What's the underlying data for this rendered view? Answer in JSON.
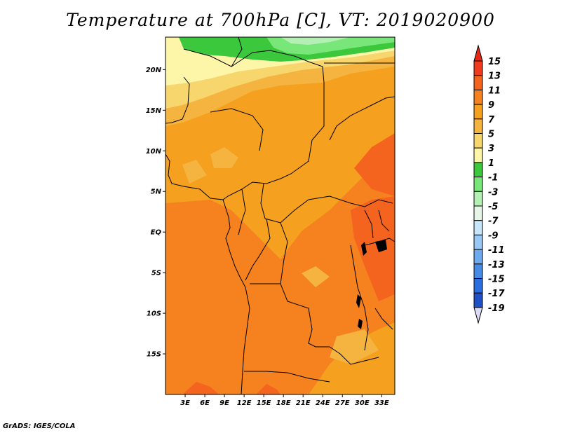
{
  "title": "Temperature at 700hPa [C], VT: 2019020900",
  "credit": "GrADS: IGES/COLA",
  "map": {
    "lon_range": [
      0,
      35
    ],
    "lat_range": [
      -20,
      24
    ],
    "lat_ticks": [
      {
        "value": 20,
        "label": "20N"
      },
      {
        "value": 15,
        "label": "15N"
      },
      {
        "value": 10,
        "label": "10N"
      },
      {
        "value": 5,
        "label": "5N"
      },
      {
        "value": 0,
        "label": "EQ"
      },
      {
        "value": -5,
        "label": "5S"
      },
      {
        "value": -10,
        "label": "10S"
      },
      {
        "value": -15,
        "label": "15S"
      }
    ],
    "lon_ticks": [
      {
        "value": 3,
        "label": "3E"
      },
      {
        "value": 6,
        "label": "6E"
      },
      {
        "value": 9,
        "label": "9E"
      },
      {
        "value": 12,
        "label": "12E"
      },
      {
        "value": 15,
        "label": "15E"
      },
      {
        "value": 18,
        "label": "18E"
      },
      {
        "value": 21,
        "label": "21E"
      },
      {
        "value": 24,
        "label": "24E"
      },
      {
        "value": 27,
        "label": "27E"
      },
      {
        "value": 30,
        "label": "30E"
      },
      {
        "value": 33,
        "label": "33E"
      }
    ]
  },
  "colorbar": {
    "levels": [
      "15",
      "13",
      "11",
      "9",
      "7",
      "5",
      "3",
      "1",
      "-1",
      "-3",
      "-5",
      "-7",
      "-9",
      "-11",
      "-13",
      "-15",
      "-17",
      "-19"
    ],
    "colors": [
      "#f03c1e",
      "#f5641e",
      "#f5821e",
      "#f5a01e",
      "#f5b440",
      "#f7d66e",
      "#fdf5a8",
      "#3cc83c",
      "#78e678",
      "#b4f0b4",
      "#e6f5e6",
      "#c8e6fa",
      "#9ac8f5",
      "#6eaaf0",
      "#468ce6",
      "#2a6ee0",
      "#1e50c8",
      "#0a2d8c",
      "#000064"
    ],
    "top_arrow_color": "#e62814",
    "bottom_arrow_color": "#dcdcf5"
  }
}
